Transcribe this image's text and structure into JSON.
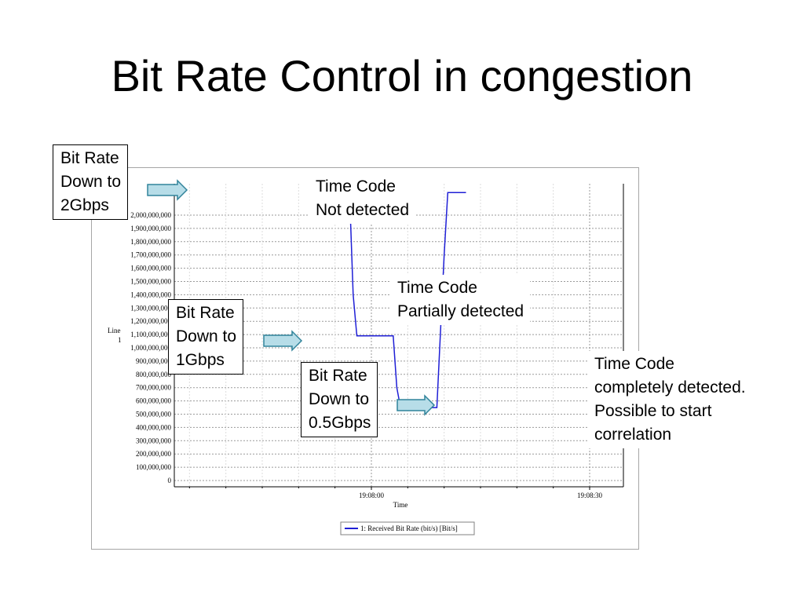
{
  "slide": {
    "title": "Bit Rate Control in congestion"
  },
  "callouts": {
    "bitrate_2g": {
      "line1": "Bit Rate",
      "line2": "Down to",
      "line3": "2Gbps"
    },
    "bitrate_1g": {
      "line1": "Bit Rate",
      "line2": "Down to",
      "line3": "1Gbps"
    },
    "bitrate_05g": {
      "line1": "Bit Rate",
      "line2": "Down to",
      "line3": "0.5Gbps"
    },
    "tc_not": {
      "line1": "Time Code",
      "line2": "Not detected"
    },
    "tc_partial": {
      "line1": "Time Code",
      "line2": "Partially detected"
    },
    "tc_complete": {
      "line1": "Time Code",
      "line2": "completely detected.",
      "line3": "Possible to start",
      "line4": "correlation"
    }
  },
  "chart_data": {
    "type": "line",
    "xlabel": "Time",
    "ylabel": "Line 1",
    "x_tick_labels": [
      "19:08:00",
      "19:08:30"
    ],
    "y_tick_labels": [
      "2,000,000,000",
      "1,900,000,000",
      "1,800,000,000",
      "1,700,000,000",
      "1,600,000,000",
      "1,500,000,000",
      "1,400,000,000",
      "1,300,000,000",
      "1,200,000,000",
      "1,100,000,000",
      "1,000,000,000",
      "900,000,000",
      "800,000,000",
      "700,000,000",
      "600,000,000",
      "500,000,000",
      "400,000,000",
      "300,000,000",
      "200,000,000",
      "100,000,000",
      "0"
    ],
    "ylim": [
      0,
      2200000000
    ],
    "grid": true,
    "legend_position": "bottom",
    "series": [
      {
        "name": "1: Received Bit Rate (bit/s) [Bit/s]",
        "color": "#1f1fd6",
        "x": [
          "19:07:52",
          "19:07:57",
          "19:07:57.5",
          "19:07:58",
          "19:08:03",
          "19:08:03.5",
          "19:08:04",
          "19:08:09",
          "19:08:10",
          "19:08:10.5",
          "19:08:13"
        ],
        "y": [
          2170000000,
          2170000000,
          1400000000,
          1090000000,
          1090000000,
          700000000,
          550000000,
          550000000,
          1700000000,
          2170000000,
          2170000000
        ]
      }
    ]
  }
}
